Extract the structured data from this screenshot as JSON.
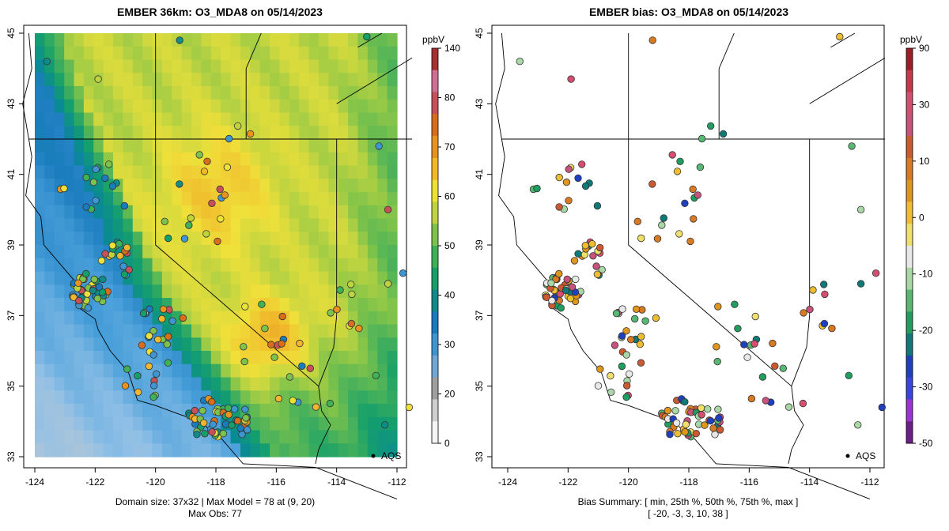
{
  "colors": {
    "model": [
      "#f4f4f4",
      "#cfcfcf",
      "#9f9f9f",
      "#6fa7d6",
      "#3d95d2",
      "#1a7cc0",
      "#0f8c8a",
      "#15a06a",
      "#3fb156",
      "#7cc24b",
      "#bfd33e",
      "#ede138",
      "#f2b72a",
      "#e9921c",
      "#d96d1b",
      "#c8505a",
      "#d06f92",
      "#a82f2f"
    ],
    "bias": [
      "#6b1f8a",
      "#9b34d6",
      "#3b44e0",
      "#1e3fbf",
      "#0e7a78",
      "#1f9e60",
      "#57b872",
      "#a9d8a6",
      "#e8e8e8",
      "#f0e06a",
      "#eebd30",
      "#e0961c",
      "#d97a20",
      "#cc5a30",
      "#c8527a",
      "#d44f6f",
      "#c8384a",
      "#9e1e28"
    ]
  },
  "left_panel": {
    "title": "EMBER 36km: O3_MDA8 on 05/14/2023",
    "colorbar_unit": "ppbV",
    "colorbar_labels": [
      "140",
      "80",
      "70",
      "60",
      "50",
      "40",
      "30",
      "20",
      "0"
    ],
    "colorbar_values": [
      140,
      80,
      70,
      60,
      50,
      40,
      30,
      20,
      0
    ],
    "x_ticks": [
      "-124",
      "-122",
      "-120",
      "-118",
      "-116",
      "-114",
      "-112"
    ],
    "y_ticks": [
      "45",
      "43",
      "41",
      "39",
      "37",
      "35",
      "33"
    ],
    "marker_label": "AQS",
    "footer_line1": "Domain size: 37x32 | Max Model = 78 at (9, 20)",
    "footer_line2": "Max Obs: 77"
  },
  "right_panel": {
    "title": "EMBER bias: O3_MDA8 on 05/14/2023",
    "colorbar_unit": "ppbV",
    "colorbar_labels": [
      "90",
      "30",
      "10",
      "0",
      "-10",
      "-20",
      "-30",
      "-50"
    ],
    "colorbar_values": [
      90,
      30,
      10,
      0,
      -10,
      -20,
      -30,
      -50
    ],
    "x_ticks": [
      "-124",
      "-122",
      "-120",
      "-118",
      "-116",
      "-114",
      "-112"
    ],
    "y_ticks": [
      "45",
      "43",
      "41",
      "39",
      "37",
      "35",
      "33"
    ],
    "marker_label": "AQS",
    "footer_line1": "Bias Summary: [ min, 25th %, 50th %, 75th %, max ]",
    "footer_line2": "[ -20,   -3,   3,   10,   38 ]"
  },
  "chart_data": [
    {
      "type": "heatmap",
      "title": "EMBER 36km: O3_MDA8 on 05/14/2023",
      "xlabel": "",
      "ylabel": "",
      "xlim": [
        -124.5,
        -111.7
      ],
      "ylim": [
        32.8,
        45.2
      ],
      "grid_extent": {
        "lon": [
          -124,
          -112
        ],
        "lat": [
          33,
          45
        ]
      },
      "domain_size": "37x32",
      "max_model": 78,
      "max_obs": 77,
      "colorbar": {
        "unit": "ppbV",
        "ticks": [
          0,
          20,
          30,
          40,
          50,
          60,
          70,
          80,
          140
        ]
      },
      "reference_point": {
        "label": "AQS",
        "lon": -112.7,
        "lat": 33.0
      }
    },
    {
      "type": "scatter",
      "title": "EMBER bias: O3_MDA8 on 05/14/2023",
      "xlim": [
        -124.5,
        -111.7
      ],
      "ylim": [
        32.8,
        45.2
      ],
      "colorbar": {
        "unit": "ppbV",
        "ticks": [
          -50,
          -30,
          -20,
          -10,
          0,
          10,
          30,
          90
        ]
      },
      "bias_summary": {
        "min": -20,
        "p25": -3,
        "p50": 3,
        "p75": 10,
        "max": 38
      },
      "reference_point": {
        "label": "AQS",
        "lon": -112.7,
        "lat": 33.0
      }
    }
  ]
}
